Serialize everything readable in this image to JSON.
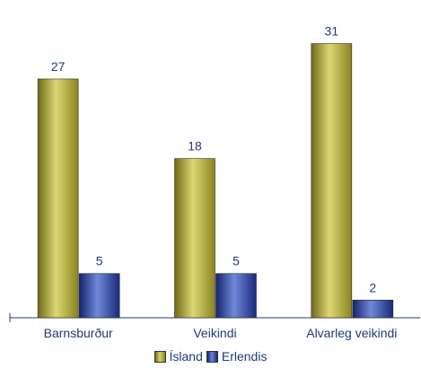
{
  "chart_data": {
    "type": "bar",
    "categories": [
      "Barnsburður",
      "Veikindi",
      "Alvarleg veikindi"
    ],
    "series": [
      {
        "name": "Ísland",
        "values": [
          27,
          18,
          31
        ]
      },
      {
        "name": "Erlendis",
        "values": [
          5,
          5,
          2
        ]
      }
    ],
    "ylim": [
      0,
      34
    ],
    "grid": false,
    "legend_position": "bottom-center",
    "data_labels": true,
    "colors": {
      "Ísland": "#c8c25a",
      "Erlendis": "#3a4fb0",
      "text": "#1f3a7a",
      "axis": "#1f3a7a"
    }
  }
}
